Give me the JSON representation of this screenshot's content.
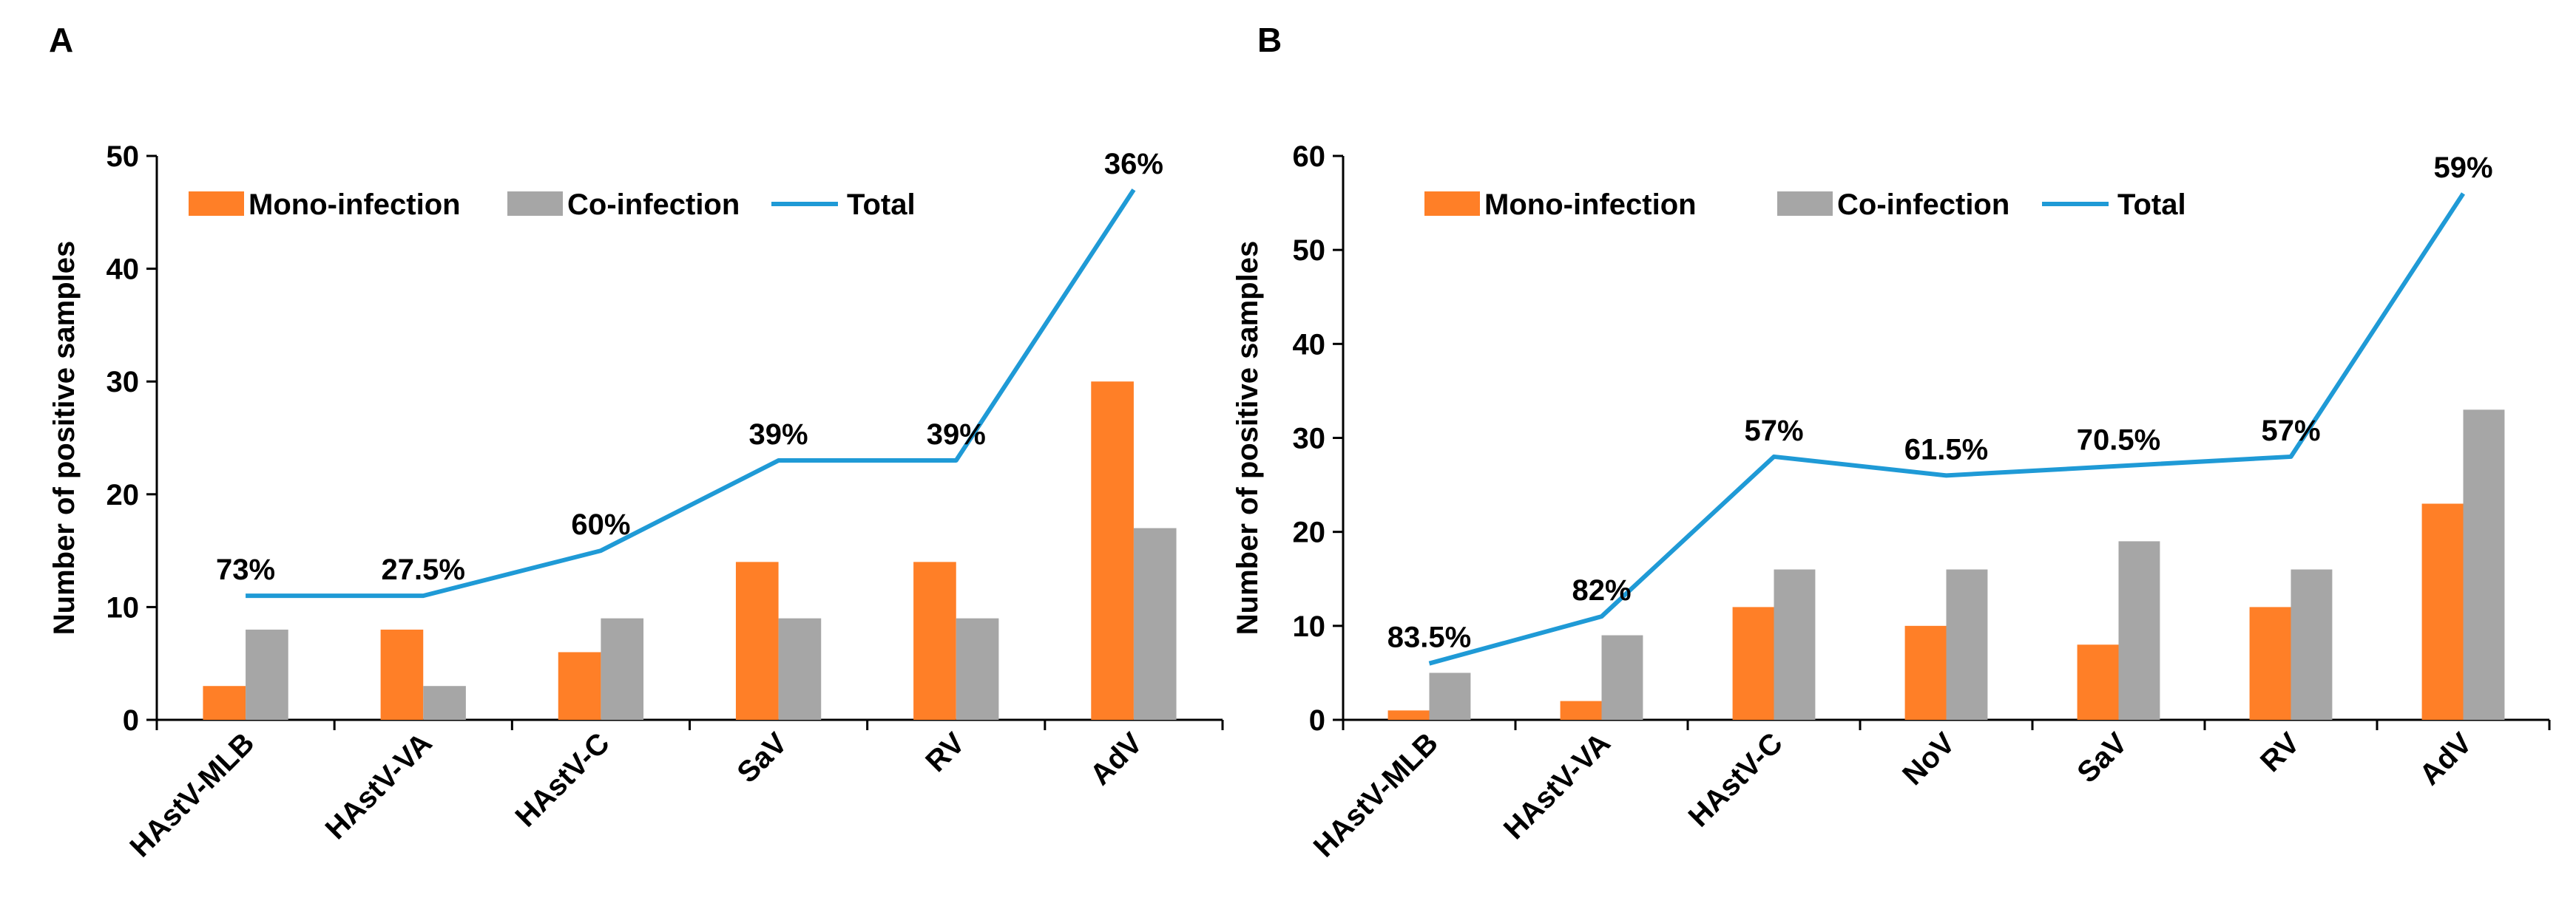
{
  "colors": {
    "mono": "#ff7f27",
    "co": "#a6a6a6",
    "total": "#1f9ad6"
  },
  "legend": {
    "mono": "Mono-infection",
    "co": "Co-infection",
    "total": "Total"
  },
  "chart_data": [
    {
      "panel": "A",
      "type": "bar",
      "ylabel": "Number of positive samples",
      "ylim": [
        0,
        50
      ],
      "yticks": [
        0,
        10,
        20,
        30,
        40,
        50
      ],
      "categories": [
        "HAstV-MLB",
        "HAstV-VA",
        "HAstV-C",
        "SaV",
        "RV",
        "AdV"
      ],
      "series": [
        {
          "name": "Mono-infection",
          "type": "bar",
          "values": [
            3,
            8,
            6,
            14,
            14,
            30
          ]
        },
        {
          "name": "Co-infection",
          "type": "bar",
          "values": [
            8,
            3,
            9,
            9,
            9,
            17
          ]
        },
        {
          "name": "Total",
          "type": "line",
          "values": [
            11,
            11,
            15,
            23,
            23,
            47
          ]
        }
      ],
      "annotations": [
        "73%",
        "27.5%",
        "60%",
        "39%",
        "39%",
        "36%"
      ],
      "legend_position": "top-left",
      "grid": false
    },
    {
      "panel": "B",
      "type": "bar",
      "ylabel": "Number of positive samples",
      "ylim": [
        0,
        60
      ],
      "yticks": [
        0,
        10,
        20,
        30,
        40,
        50,
        60
      ],
      "categories": [
        "HAstV-MLB",
        "HAstV-VA",
        "HAstV-C",
        "NoV",
        "SaV",
        "RV",
        "AdV"
      ],
      "series": [
        {
          "name": "Mono-infection",
          "type": "bar",
          "values": [
            1,
            2,
            12,
            10,
            8,
            12,
            23
          ]
        },
        {
          "name": "Co-infection",
          "type": "bar",
          "values": [
            5,
            9,
            16,
            16,
            19,
            16,
            33
          ]
        },
        {
          "name": "Total",
          "type": "line",
          "values": [
            6,
            11,
            28,
            26,
            27,
            28,
            56
          ]
        }
      ],
      "annotations": [
        "83.5%",
        "82%",
        "57%",
        "61.5%",
        "70.5%",
        "57%",
        "59%"
      ],
      "legend_position": "top-left",
      "grid": false
    }
  ]
}
